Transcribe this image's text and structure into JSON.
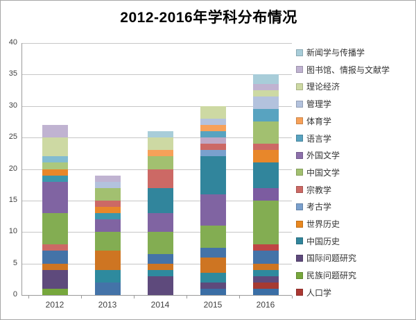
{
  "title": "2012-2016年学科分布情况",
  "chart_data": {
    "type": "bar",
    "stacked": true,
    "title": "2012-2016年学科分布情况",
    "xlabel": "",
    "ylabel": "",
    "categories": [
      "2012",
      "2013",
      "2014",
      "2015",
      "2016"
    ],
    "totals": [
      27,
      19,
      26,
      30,
      35
    ],
    "ylim": [
      0,
      40
    ],
    "yticks": [
      0,
      5,
      10,
      15,
      20,
      25,
      30,
      35,
      40
    ],
    "grid": true,
    "legend_position": "right",
    "legend": [
      {
        "label": "新闻学与传播学",
        "color": "#a8cdd9"
      },
      {
        "label": "图书馆、情报与文献学",
        "color": "#c0b3d1"
      },
      {
        "label": "理论经济",
        "color": "#cdd9a3"
      },
      {
        "label": "管理学",
        "color": "#b3c2dd"
      },
      {
        "label": "体育学",
        "color": "#f7a159"
      },
      {
        "label": "语言学",
        "color": "#58a3c0"
      },
      {
        "label": "外国文学",
        "color": "#8d70ab"
      },
      {
        "label": "中国文学",
        "color": "#a2c070"
      },
      {
        "label": "宗教学",
        "color": "#cc6965"
      },
      {
        "label": "考古学",
        "color": "#7aa0cd"
      },
      {
        "label": "世界历史",
        "color": "#e9881f"
      },
      {
        "label": "中国历史",
        "color": "#31859c"
      },
      {
        "label": "国际问题研究",
        "color": "#5e4a7c"
      },
      {
        "label": "民族问题研究",
        "color": "#77a73c"
      },
      {
        "label": "人口学",
        "color": "#ab3832"
      }
    ],
    "bars": [
      {
        "category": "2012",
        "total": 27,
        "segments": [
          {
            "label": "民族问题研究",
            "color": "#76a73c",
            "value": 1
          },
          {
            "label": "国际问题研究",
            "color": "#5e4a7c",
            "value": 3
          },
          {
            "label": "世界历史",
            "color": "#ce7522",
            "value": 1
          },
          {
            "label": "考古学",
            "color": "#4473a8",
            "value": 2
          },
          {
            "label": "宗教学",
            "color": "#cc6965",
            "value": 1
          },
          {
            "label": "中国文学",
            "color": "#83ad52",
            "value": 5
          },
          {
            "label": "外国文学",
            "color": "#8064a2",
            "value": 5
          },
          {
            "label": "语言学",
            "color": "#3b97ad",
            "value": 1
          },
          {
            "label": "体育学",
            "color": "#e8872a",
            "value": 1
          },
          {
            "label": "中国文学",
            "color": "#abc87e",
            "value": 1
          },
          {
            "label": "新闻学与传播学",
            "color": "#82bcd1",
            "value": 1
          },
          {
            "label": "理论经济",
            "color": "#cdd9a3",
            "value": 3
          },
          {
            "label": "图书馆、情报与文献学",
            "color": "#c0b3d1",
            "value": 2
          }
        ]
      },
      {
        "category": "2013",
        "total": 19,
        "segments": [
          {
            "label": "考古学",
            "color": "#4473a8",
            "value": 2
          },
          {
            "label": "中国历史",
            "color": "#2e8a9e",
            "value": 2
          },
          {
            "label": "世界历史",
            "color": "#ce7522",
            "value": 3
          },
          {
            "label": "中国文学",
            "color": "#83ad52",
            "value": 3
          },
          {
            "label": "外国文学",
            "color": "#8064a2",
            "value": 2
          },
          {
            "label": "语言学",
            "color": "#3b97ad",
            "value": 1
          },
          {
            "label": "体育学",
            "color": "#e8872a",
            "value": 1
          },
          {
            "label": "宗教学",
            "color": "#cc6965",
            "value": 1
          },
          {
            "label": "中国文学",
            "color": "#a2c070",
            "value": 2
          },
          {
            "label": "管理学",
            "color": "#b3c2dd",
            "value": 1
          },
          {
            "label": "图书馆、情报与文献学",
            "color": "#c0b3d1",
            "value": 1
          }
        ]
      },
      {
        "category": "2014",
        "total": 26,
        "segments": [
          {
            "label": "国际问题研究",
            "color": "#5e4a7c",
            "value": 3
          },
          {
            "label": "中国历史",
            "color": "#2e8a9e",
            "value": 1
          },
          {
            "label": "世界历史",
            "color": "#ce7522",
            "value": 1
          },
          {
            "label": "考古学",
            "color": "#4473a8",
            "value": 1.5
          },
          {
            "label": "民族问题研究",
            "color": "#83ad52",
            "value": 3.5
          },
          {
            "label": "外国文学",
            "color": "#8064a2",
            "value": 3
          },
          {
            "label": "中国历史",
            "color": "#31859c",
            "value": 4
          },
          {
            "label": "宗教学",
            "color": "#cc6965",
            "value": 3
          },
          {
            "label": "中国文学",
            "color": "#a2c070",
            "value": 2
          },
          {
            "label": "体育学",
            "color": "#f7a159",
            "value": 1
          },
          {
            "label": "理论经济",
            "color": "#cdd9a3",
            "value": 2
          },
          {
            "label": "新闻学与传播学",
            "color": "#a8cdd9",
            "value": 1
          }
        ]
      },
      {
        "category": "2015",
        "total": 30,
        "segments": [
          {
            "label": "考古学",
            "color": "#3a6ea5",
            "value": 1
          },
          {
            "label": "国际问题研究",
            "color": "#5e4a7c",
            "value": 1
          },
          {
            "label": "中国历史",
            "color": "#2e8a9e",
            "value": 1.5
          },
          {
            "label": "世界历史",
            "color": "#ce7522",
            "value": 2.5
          },
          {
            "label": "考古学",
            "color": "#4473a8",
            "value": 1.5
          },
          {
            "label": "民族问题研究",
            "color": "#83ad52",
            "value": 3.5
          },
          {
            "label": "外国文学",
            "color": "#8064a2",
            "value": 5
          },
          {
            "label": "中国历史",
            "color": "#31859c",
            "value": 6
          },
          {
            "label": "考古学",
            "color": "#7aa0cd",
            "value": 1
          },
          {
            "label": "宗教学",
            "color": "#cc6965",
            "value": 1
          },
          {
            "label": "图书馆、情报与文献学",
            "color": "#bfa8c6",
            "value": 1
          },
          {
            "label": "语言学",
            "color": "#58a3c0",
            "value": 1
          },
          {
            "label": "体育学",
            "color": "#f7a159",
            "value": 1
          },
          {
            "label": "管理学",
            "color": "#b3c2dd",
            "value": 1
          },
          {
            "label": "理论经济",
            "color": "#cdd9a3",
            "value": 2
          }
        ]
      },
      {
        "category": "2016",
        "total": 35,
        "segments": [
          {
            "label": "考古学",
            "color": "#3a6ea5",
            "value": 1
          },
          {
            "label": "人口学",
            "color": "#a63a32",
            "value": 1
          },
          {
            "label": "国际问题研究",
            "color": "#5e4a7c",
            "value": 1
          },
          {
            "label": "中国历史",
            "color": "#2e8a9e",
            "value": 1
          },
          {
            "label": "世界历史",
            "color": "#ce7522",
            "value": 1
          },
          {
            "label": "考古学",
            "color": "#4473a8",
            "value": 2
          },
          {
            "label": "人口学",
            "color": "#bf4545",
            "value": 1
          },
          {
            "label": "民族问题研究",
            "color": "#83ad52",
            "value": 7
          },
          {
            "label": "外国文学",
            "color": "#7c5ca0",
            "value": 2
          },
          {
            "label": "中国历史",
            "color": "#31859c",
            "value": 4
          },
          {
            "label": "世界历史",
            "color": "#e8872a",
            "value": 2
          },
          {
            "label": "宗教学",
            "color": "#cc6965",
            "value": 1
          },
          {
            "label": "中国文学",
            "color": "#a2c070",
            "value": 3.5
          },
          {
            "label": "语言学",
            "color": "#58a3c0",
            "value": 2
          },
          {
            "label": "管理学",
            "color": "#b3c2dd",
            "value": 2
          },
          {
            "label": "理论经济",
            "color": "#cdd9a3",
            "value": 1
          },
          {
            "label": "图书馆、情报与文献学",
            "color": "#c0b3d1",
            "value": 1
          },
          {
            "label": "新闻学与传播学",
            "color": "#a8cdd9",
            "value": 1.5
          }
        ]
      }
    ]
  }
}
